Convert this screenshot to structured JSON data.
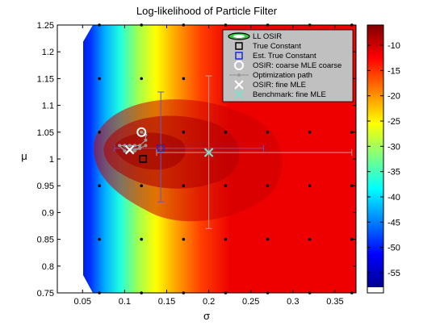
{
  "chart_data": {
    "type": "contour",
    "title": "Log-likelihood of Particle Filter",
    "xlabel": "σ",
    "ylabel": "μ",
    "xlim": [
      0.02,
      0.375
    ],
    "ylim": [
      0.75,
      1.25
    ],
    "x_ticks": [
      {
        "v": 0.05,
        "label": "0.05"
      },
      {
        "v": 0.1,
        "label": "0.1"
      },
      {
        "v": 0.15,
        "label": "0.15"
      },
      {
        "v": 0.2,
        "label": "0.2"
      },
      {
        "v": 0.25,
        "label": "0.25"
      },
      {
        "v": 0.3,
        "label": "0.3"
      },
      {
        "v": 0.35,
        "label": "0.35"
      }
    ],
    "y_ticks": [
      {
        "v": 0.75,
        "label": "0.75"
      },
      {
        "v": 0.8,
        "label": "0.8"
      },
      {
        "v": 0.85,
        "label": "0.85"
      },
      {
        "v": 0.9,
        "label": "0.9"
      },
      {
        "v": 0.95,
        "label": "0.95"
      },
      {
        "v": 1.0,
        "label": "1"
      },
      {
        "v": 1.05,
        "label": "1.05"
      },
      {
        "v": 1.1,
        "label": "1.1"
      },
      {
        "v": 1.15,
        "label": "1.15"
      },
      {
        "v": 1.2,
        "label": "1.2"
      },
      {
        "v": 1.25,
        "label": "1.25"
      }
    ],
    "colorbar": {
      "range": [
        -59,
        -6
      ],
      "ticks": [
        {
          "v": -10,
          "label": "-10"
        },
        {
          "v": -15,
          "label": "-15"
        },
        {
          "v": -20,
          "label": "-20"
        },
        {
          "v": -25,
          "label": "-25"
        },
        {
          "v": -30,
          "label": "-30"
        },
        {
          "v": -35,
          "label": "-35"
        },
        {
          "v": -40,
          "label": "-40"
        },
        {
          "v": -45,
          "label": "-45"
        },
        {
          "v": -50,
          "label": "-50"
        },
        {
          "v": -55,
          "label": "-55"
        }
      ]
    },
    "grid_points": {
      "x": [
        0.07,
        0.12,
        0.17,
        0.22,
        0.27,
        0.32,
        0.37
      ],
      "y": [
        0.75,
        0.85,
        0.95,
        1.05,
        1.15,
        1.25
      ]
    },
    "legend_position": "top-right",
    "legend": [
      {
        "key": "ll",
        "label": "LL OSIR"
      },
      {
        "key": "true",
        "label": "True Constant"
      },
      {
        "key": "est",
        "label": "Est. True Constant"
      },
      {
        "key": "coarse",
        "label": "OSIR: coarse MLE coarse"
      },
      {
        "key": "path",
        "label": "Optimization path"
      },
      {
        "key": "fine",
        "label": "OSIR: fine MLE"
      },
      {
        "key": "bench",
        "label": "Benchmark: fine MLE"
      }
    ],
    "true_constant": {
      "x": 0.122,
      "y": 1.0
    },
    "est_true_constant": {
      "x": 0.143,
      "y": 1.02,
      "x_err": [
        0.088,
        0.265
      ],
      "y_err": [
        0.92,
        1.125
      ]
    },
    "coarse_mle": {
      "x": 0.12,
      "y": 1.05
    },
    "fine_mle": {
      "x": 0.106,
      "y": 1.017
    },
    "benchmark_mle": {
      "x": 0.2,
      "y": 1.012,
      "x_err": [
        0.138,
        0.37
      ],
      "y_err": [
        0.87,
        1.155
      ]
    },
    "optimization_path": {
      "x": [
        0.12,
        0.125,
        0.125,
        0.118,
        0.112,
        0.106,
        0.1,
        0.094,
        0.1,
        0.112,
        0.118,
        0.125,
        0.118,
        0.106
      ],
      "y": [
        1.05,
        1.045,
        1.035,
        1.025,
        1.025,
        1.025,
        1.025,
        1.025,
        1.015,
        1.015,
        1.02,
        1.025,
        1.02,
        1.017
      ]
    },
    "colors": {
      "true": "#000000",
      "est": "#1a2ad8",
      "coarse": "#ffffff",
      "path": "#9a9a9a",
      "fine": "#ffffff",
      "bench": "#7fe0c8",
      "est_err": "#5a5ad8",
      "bench_err": "#c89a9a"
    }
  }
}
